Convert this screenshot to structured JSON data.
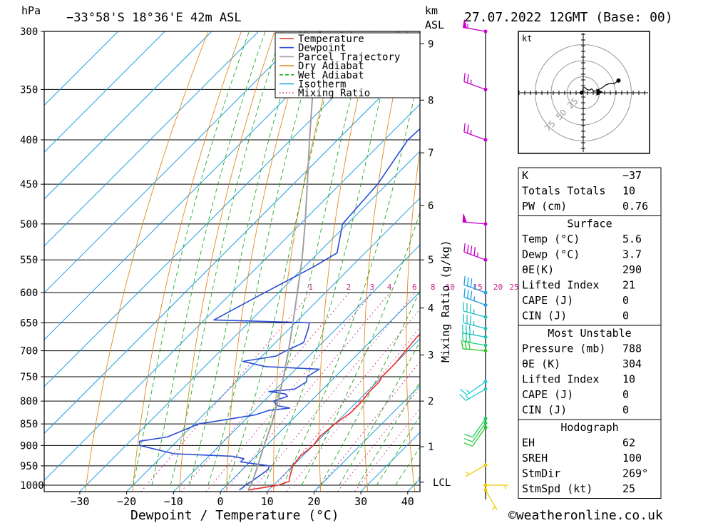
{
  "header": {
    "pressure_unit": "hPa",
    "location": "−33°58'S 18°36'E 42m ASL",
    "height_unit_1": "km",
    "height_unit_2": "ASL",
    "datetime": "27.07.2022 12GMT (Base: 00)"
  },
  "legend": [
    {
      "label": "Temperature",
      "color": "#e8302a",
      "style": "solid"
    },
    {
      "label": "Dewpoint",
      "color": "#2a4fd8",
      "style": "solid"
    },
    {
      "label": "Parcel Trajectory",
      "color": "#a0a0a0",
      "style": "solid"
    },
    {
      "label": "Dry Adiabat",
      "color": "#e08a1e",
      "style": "solid"
    },
    {
      "label": "Wet Adiabat",
      "color": "#22aa22",
      "style": "dashed"
    },
    {
      "label": "Isotherm",
      "color": "#1e9fe0",
      "style": "solid"
    },
    {
      "label": "Mixing Ratio",
      "color": "#cc2288",
      "style": "dotted"
    }
  ],
  "chart_data": {
    "type": "line",
    "title": "−33°58'S 18°36'E 42m ASL",
    "xlabel": "Dewpoint / Temperature (°C)",
    "ylabel": "hPa",
    "y_scale": "log",
    "xlim": [
      -40,
      40
    ],
    "ylim": [
      1025,
      300
    ],
    "x_ticks": [
      -30,
      -20,
      -10,
      0,
      10,
      20,
      30,
      40
    ],
    "x_tick_labels": [
      "−30",
      "−20",
      "−10",
      "0",
      "10",
      "20",
      "30",
      "40"
    ],
    "pressure_levels": [
      300,
      350,
      400,
      450,
      500,
      550,
      600,
      650,
      700,
      750,
      800,
      850,
      900,
      950,
      1000
    ],
    "height_axis": {
      "label": "km",
      "sublabel": "ASL",
      "ticks": [
        {
          "km": "1",
          "p": 903
        },
        {
          "km": "2",
          "p": 800
        },
        {
          "km": "3",
          "p": 708
        },
        {
          "km": "4",
          "p": 625
        },
        {
          "km": "5",
          "p": 550
        },
        {
          "km": "6",
          "p": 476
        },
        {
          "km": "7",
          "p": 414
        },
        {
          "km": "8",
          "p": 360
        },
        {
          "km": "9",
          "p": 310
        }
      ],
      "lcl_label": "LCL",
      "lcl_p": 992
    },
    "mixing_ratio_label": "Mixing Ratio (g/kg)",
    "mixing_ratio_values": [
      "1",
      "2",
      "3",
      "4",
      "6",
      "8",
      "10",
      "15",
      "20",
      "25"
    ],
    "series": [
      {
        "name": "Temperature",
        "color": "#e8302a",
        "points": [
          [
            1013,
            5.6
          ],
          [
            1005,
            9
          ],
          [
            1000,
            11
          ],
          [
            990,
            12.5
          ],
          [
            975,
            11.5
          ],
          [
            950,
            10
          ],
          [
            925,
            9.5
          ],
          [
            900,
            10
          ],
          [
            880,
            9.5
          ],
          [
            850,
            10
          ],
          [
            825,
            11
          ],
          [
            800,
            11
          ],
          [
            780,
            10.5
          ],
          [
            760,
            10.5
          ],
          [
            750,
            10
          ],
          [
            725,
            10
          ],
          [
            700,
            9.5
          ],
          [
            675,
            9
          ],
          [
            650,
            9
          ],
          [
            625,
            8
          ],
          [
            600,
            7
          ],
          [
            575,
            6
          ],
          [
            550,
            5
          ],
          [
            530,
            3.5
          ],
          [
            500,
            -0.5
          ],
          [
            450,
            -8
          ],
          [
            400,
            -15.5
          ],
          [
            350,
            -25
          ],
          [
            300,
            -35
          ]
        ]
      },
      {
        "name": "Dewpoint",
        "color": "#2a4fd8",
        "points": [
          [
            1013,
            3.7
          ],
          [
            1005,
            4
          ],
          [
            1000,
            4
          ],
          [
            990,
            4.5
          ],
          [
            960,
            5.5
          ],
          [
            950,
            5
          ],
          [
            940,
            -2
          ],
          [
            932,
            -2
          ],
          [
            926,
            -5
          ],
          [
            920,
            -18
          ],
          [
            900,
            -27
          ],
          [
            890,
            -28
          ],
          [
            880,
            -23
          ],
          [
            850,
            -19
          ],
          [
            840,
            -14
          ],
          [
            830,
            -9
          ],
          [
            820,
            -7
          ],
          [
            815,
            -3
          ],
          [
            810,
            -6
          ],
          [
            805,
            -7
          ],
          [
            800,
            -8
          ],
          [
            790,
            -6
          ],
          [
            785,
            -7
          ],
          [
            780,
            -11
          ],
          [
            775,
            -6
          ],
          [
            760,
            -5
          ],
          [
            750,
            -6
          ],
          [
            735,
            -5
          ],
          [
            730,
            -17
          ],
          [
            720,
            -23
          ],
          [
            710,
            -17
          ],
          [
            700,
            -16
          ],
          [
            685,
            -14
          ],
          [
            660,
            -16
          ],
          [
            650,
            -17
          ],
          [
            645,
            -38
          ],
          [
            600,
            -33
          ],
          [
            560,
            -28
          ],
          [
            540,
            -26
          ],
          [
            500,
            -31
          ],
          [
            450,
            -32
          ],
          [
            400,
            -35
          ],
          [
            350,
            -34
          ],
          [
            320,
            -31
          ],
          [
            310,
            -30
          ],
          [
            300,
            -34
          ]
        ]
      },
      {
        "name": "Parcel Trajectory",
        "color": "#a0a0a0",
        "points": [
          [
            1013,
            5.6
          ],
          [
            992,
            4.8
          ],
          [
            950,
            2.5
          ],
          [
            900,
            -0.5
          ],
          [
            850,
            -3.5
          ],
          [
            800,
            -7
          ],
          [
            750,
            -11
          ],
          [
            700,
            -15.5
          ],
          [
            650,
            -20.5
          ],
          [
            600,
            -26
          ],
          [
            550,
            -32
          ],
          [
            500,
            -39
          ],
          [
            450,
            -47
          ],
          [
            400,
            -56
          ],
          [
            350,
            -66
          ],
          [
            300,
            -77
          ]
        ]
      }
    ],
    "wind_barbs": [
      {
        "p": 300,
        "dir": 280,
        "speed": 55,
        "color": "#cc00cc"
      },
      {
        "p": 350,
        "dir": 290,
        "speed": 25,
        "color": "#cc00cc"
      },
      {
        "p": 400,
        "dir": 290,
        "speed": 25,
        "color": "#cc00cc"
      },
      {
        "p": 500,
        "dir": 275,
        "speed": 50,
        "color": "#cc00cc"
      },
      {
        "p": 550,
        "dir": 290,
        "speed": 45,
        "color": "#cc00cc"
      },
      {
        "p": 600,
        "dir": 290,
        "speed": 35,
        "color": "#1ea0e0"
      },
      {
        "p": 620,
        "dir": 290,
        "speed": 35,
        "color": "#1ea0e0"
      },
      {
        "p": 640,
        "dir": 285,
        "speed": 35,
        "color": "#1ec0c0"
      },
      {
        "p": 660,
        "dir": 285,
        "speed": 35,
        "color": "#1ec0c0"
      },
      {
        "p": 675,
        "dir": 280,
        "speed": 35,
        "color": "#1ec0c0"
      },
      {
        "p": 690,
        "dir": 280,
        "speed": 30,
        "color": "#22cc88"
      },
      {
        "p": 700,
        "dir": 275,
        "speed": 30,
        "color": "#22cc22"
      },
      {
        "p": 760,
        "dir": 235,
        "speed": 15,
        "color": "#22cccc"
      },
      {
        "p": 775,
        "dir": 240,
        "speed": 15,
        "color": "#22cccc"
      },
      {
        "p": 838,
        "dir": 215,
        "speed": 10,
        "color": "#22cc55"
      },
      {
        "p": 848,
        "dir": 215,
        "speed": 10,
        "color": "#22cc55"
      },
      {
        "p": 858,
        "dir": 215,
        "speed": 10,
        "color": "#22cc22"
      },
      {
        "p": 948,
        "dir": 240,
        "speed": 5,
        "color": "#eecc00"
      },
      {
        "p": 1000,
        "dir": 90,
        "speed": 5,
        "color": "#eecc00"
      },
      {
        "p": 1013,
        "dir": 150,
        "speed": 5,
        "color": "#eecc00"
      }
    ],
    "hodograph": {
      "unit": "kt",
      "ring_labels": [
        "25",
        "50",
        "75"
      ],
      "points": [
        [
          -3,
          0
        ],
        [
          -1,
          3
        ],
        [
          0,
          8
        ],
        [
          3,
          8
        ],
        [
          6,
          5
        ],
        [
          10,
          4
        ],
        [
          13,
          6
        ],
        [
          17,
          2
        ],
        [
          22,
          4
        ],
        [
          30,
          8
        ],
        [
          35,
          12
        ],
        [
          40,
          14
        ],
        [
          48,
          14
        ],
        [
          55,
          19
        ]
      ],
      "storm_motion": [
        25,
        1
      ]
    }
  },
  "indices": [
    {
      "label": "K",
      "value": "−37"
    },
    {
      "label": "Totals Totals",
      "value": "10"
    },
    {
      "label": "PW (cm)",
      "value": "0.76"
    }
  ],
  "surface": {
    "title": "Surface",
    "rows": [
      {
        "label": "Temp (°C)",
        "value": "5.6"
      },
      {
        "label": "Dewp (°C)",
        "value": "3.7"
      },
      {
        "label": "θE(K)",
        "value": "290"
      },
      {
        "label": "Lifted Index",
        "value": "21"
      },
      {
        "label": "CAPE (J)",
        "value": "0"
      },
      {
        "label": "CIN (J)",
        "value": "0"
      }
    ]
  },
  "most_unstable": {
    "title": "Most Unstable",
    "rows": [
      {
        "label": "Pressure (mb)",
        "value": "788"
      },
      {
        "label": "θE (K)",
        "value": "304"
      },
      {
        "label": "Lifted Index",
        "value": "10"
      },
      {
        "label": "CAPE (J)",
        "value": "0"
      },
      {
        "label": "CIN (J)",
        "value": "0"
      }
    ]
  },
  "hodograph_table": {
    "title": "Hodograph",
    "rows": [
      {
        "label": "EH",
        "value": "62"
      },
      {
        "label": "SREH",
        "value": "100"
      },
      {
        "label": "StmDir",
        "value": "269°"
      },
      {
        "label": "StmSpd (kt)",
        "value": "25"
      }
    ]
  },
  "footer": {
    "copyright": "©weatheronline.co.uk"
  }
}
